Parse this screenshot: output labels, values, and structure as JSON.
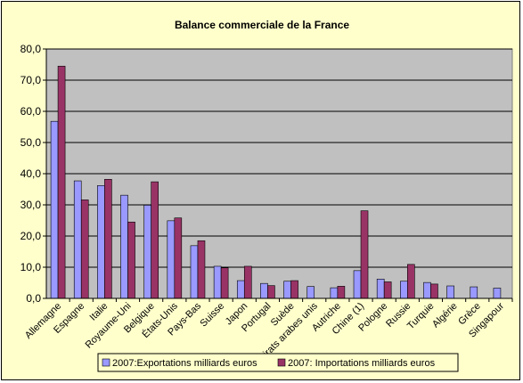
{
  "colors": {
    "background": "#ffffcc",
    "plot_area": "#c0c0c0",
    "exports": "#9999ff",
    "imports": "#993366"
  },
  "chart_data": {
    "type": "bar",
    "title": "Balance commerciale de la France",
    "xlabel": "",
    "ylabel": "",
    "ylim": [
      0,
      80
    ],
    "y_ticks": [
      "0,0",
      "10,0",
      "20,0",
      "30,0",
      "40,0",
      "50,0",
      "60,0",
      "70,0",
      "80,0"
    ],
    "grid": true,
    "legend_position": "bottom",
    "categories": [
      "Allemagne",
      "Espagne",
      "Italie",
      "Royaume-Uni",
      "Belgique",
      "États-Unis",
      "Pays-Bas",
      "Suisse",
      "Japon",
      "Portugal",
      "Suède",
      "Emirats arabes unis",
      "Autriche",
      "Chine (1)",
      "Pologne",
      "Russie",
      "Turquie",
      "Algérie",
      "Grèce",
      "Singapour"
    ],
    "series": [
      {
        "name": "2007:Exportations milliards euros",
        "values": [
          56.8,
          37.7,
          36.2,
          33.1,
          29.9,
          24.9,
          16.9,
          10.3,
          5.7,
          4.8,
          5.5,
          3.8,
          3.4,
          8.9,
          6.2,
          5.5,
          5.1,
          4.0,
          3.7,
          3.3
        ]
      },
      {
        "name": "2007: Importations milliards euros",
        "values": [
          74.5,
          31.6,
          38.2,
          24.5,
          37.4,
          25.8,
          18.5,
          9.8,
          10.3,
          4.1,
          5.7,
          null,
          3.9,
          28.1,
          5.3,
          10.9,
          4.6,
          null,
          null,
          null
        ]
      }
    ]
  }
}
